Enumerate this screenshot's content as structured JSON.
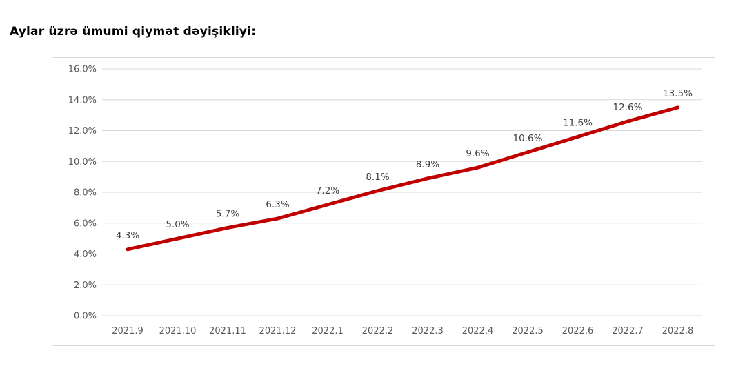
{
  "page": {
    "title": "Aylar üzrə ümumi qiymət dəyişikliyi:"
  },
  "chart_data": {
    "type": "line",
    "title": "",
    "xlabel": "",
    "ylabel": "",
    "categories": [
      "2021.9",
      "2021.10",
      "2021.11",
      "2021.12",
      "2022.1",
      "2022.2",
      "2022.3",
      "2022.4",
      "2022.5",
      "2022.6",
      "2022.7",
      "2022.8"
    ],
    "series": [
      {
        "name": "ümumi qiymət dəyişikliyi",
        "values": [
          4.3,
          5.0,
          5.7,
          6.3,
          7.2,
          8.1,
          8.9,
          9.6,
          10.6,
          11.6,
          12.6,
          13.5
        ],
        "data_labels": [
          "4.3%",
          "5.0%",
          "5.7%",
          "6.3%",
          "7.2%",
          "8.1%",
          "8.9%",
          "9.6%",
          "10.6%",
          "11.6%",
          "12.6%",
          "13.5%"
        ],
        "color": "#C00000"
      }
    ],
    "ylim": [
      0,
      16
    ],
    "ytick_step": 2,
    "ytick_labels": [
      "0.0%",
      "2.0%",
      "4.0%",
      "6.0%",
      "8.0%",
      "10.0%",
      "12.0%",
      "14.0%",
      "16.0%"
    ],
    "grid": true,
    "legend_position": "none",
    "colors": {
      "line": "#C00000",
      "gridline": "#d9d9d9",
      "axis_text": "#595959",
      "data_label_text": "#404040",
      "plot_border": "#d9d9d9",
      "background": "#ffffff"
    }
  }
}
